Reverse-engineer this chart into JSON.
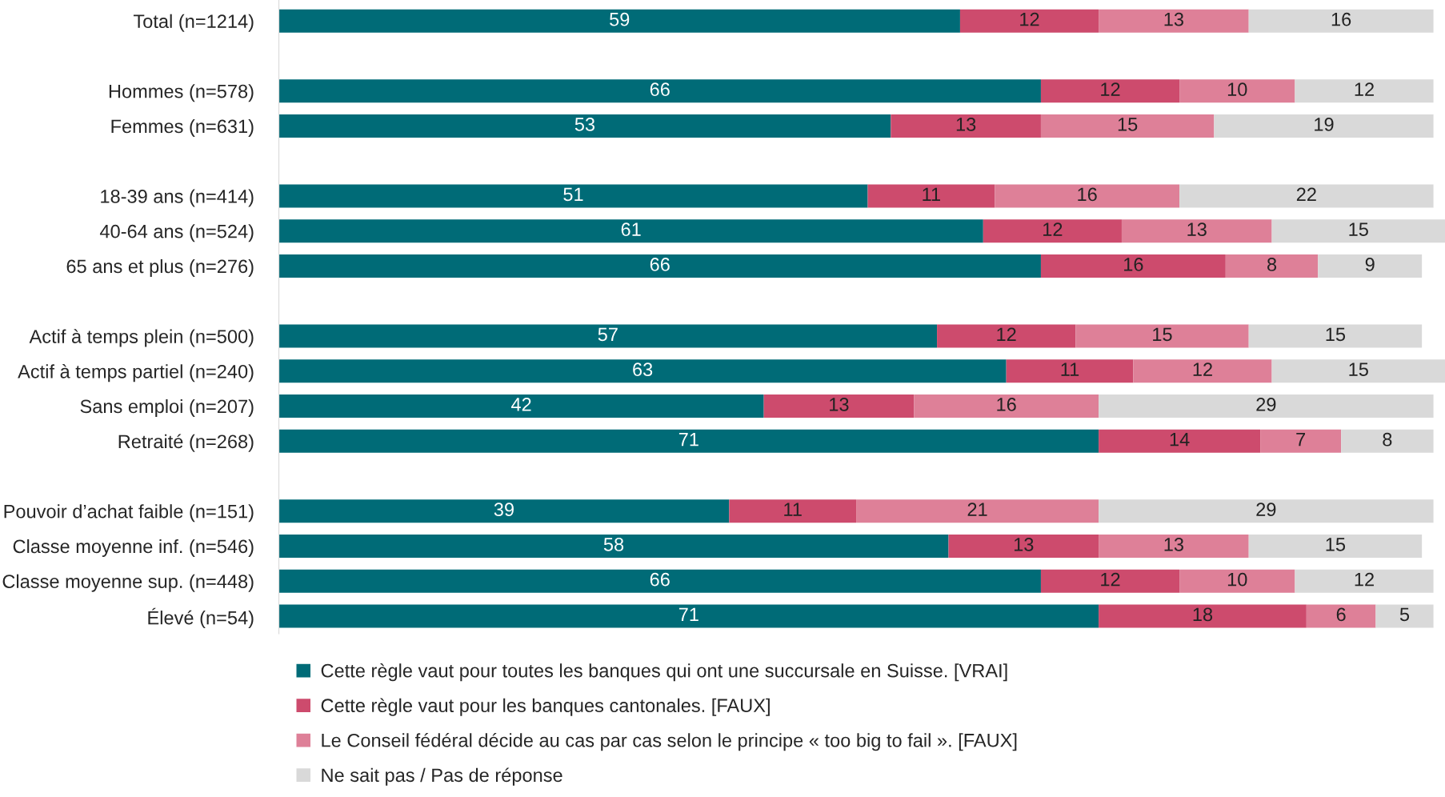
{
  "chart_data": {
    "type": "bar",
    "orientation": "horizontal",
    "stacked": true,
    "data_labels": true,
    "legend": "bottom",
    "tick_labels": "y",
    "grid": false,
    "categories": [
      "Total (n=1214)",
      null,
      "Hommes (n=578)",
      "Femmes (n=631)",
      null,
      "18-39 ans (n=414)",
      "40-64 ans (n=524)",
      "65 ans et plus (n=276)",
      null,
      "Actif à temps plein (n=500)",
      "Actif à temps partiel (n=240)",
      "Sans emploi (n=207)",
      "Retraité (n=268)",
      null,
      "Pouvoir d’achat faible (n=151)",
      "Classe moyenne inf. (n=546)",
      "Classe moyenne sup. (n=448)",
      "Élevé (n=54)"
    ],
    "series": [
      {
        "name": "Cette règle vaut pour toutes les banques qui ont une succursale en Suisse. [VRAI]",
        "color": "#006b77",
        "values": [
          59,
          null,
          66,
          53,
          null,
          51,
          61,
          66,
          null,
          57,
          63,
          42,
          71,
          null,
          39,
          58,
          66,
          71
        ]
      },
      {
        "name": "Cette règle vaut pour les banques cantonales. [FAUX]",
        "color": "#cd4b6d",
        "values": [
          12,
          null,
          12,
          13,
          null,
          11,
          12,
          16,
          null,
          12,
          11,
          13,
          14,
          null,
          11,
          13,
          12,
          18
        ]
      },
      {
        "name": "Le Conseil fédéral décide au cas par cas selon le principe « too big to fail ». [FAUX]",
        "color": "#de8098",
        "values": [
          13,
          null,
          10,
          15,
          null,
          16,
          13,
          8,
          null,
          15,
          12,
          16,
          7,
          null,
          21,
          13,
          10,
          6
        ]
      },
      {
        "name": "Ne sait pas / Pas de réponse",
        "color": "#d9d9d9",
        "values": [
          16,
          null,
          12,
          19,
          null,
          22,
          15,
          9,
          null,
          15,
          15,
          29,
          8,
          null,
          29,
          15,
          12,
          5
        ]
      }
    ]
  }
}
